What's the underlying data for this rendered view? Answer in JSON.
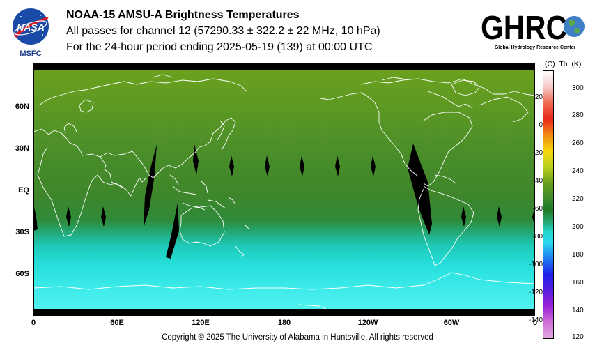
{
  "header": {
    "title": "NOAA-15 AMSU-A Brightness Temperatures",
    "subtitle": "All passes for channel 12 (57290.33 ± 322.2 ± 22 MHz, 10 hPa)",
    "period": "For the 24-hour period ending 2025-05-19 (139) at 00:00 UTC"
  },
  "logos": {
    "nasa_text": "NASA",
    "msfc_text": "MSFC",
    "ghrc_text": "GHRC",
    "ghrc_tagline": "Global Hydrology Resource Center"
  },
  "map": {
    "lat_labels": [
      "60N",
      "30N",
      "EQ",
      "30S",
      "60S"
    ],
    "lon_labels": [
      "0",
      "60E",
      "120E",
      "180",
      "120W",
      "60W",
      "0"
    ],
    "colors": {
      "high_lat_north": "#6fa51f",
      "mid": "#3f8a2a",
      "south_band": "#2aa86d",
      "south_cyan": "#22e1e0",
      "antarctic": "#4df2ef",
      "coastline": "#ffffff",
      "missing_swath": "#000000"
    }
  },
  "colorbar": {
    "unit_c": "(C)",
    "unit_tb": "Tb",
    "unit_k": "(K)",
    "celsius_ticks": [
      "20",
      "0",
      "-20",
      "-40",
      "-60",
      "-80",
      "-100",
      "-120",
      "-140"
    ],
    "kelvin_ticks": [
      "300",
      "280",
      "260",
      "240",
      "220",
      "200",
      "180",
      "160",
      "140",
      "120"
    ]
  },
  "footer": {
    "copyright": "Copyright © 2025 The University of Alabama in Huntsville.  All rights reserved"
  }
}
